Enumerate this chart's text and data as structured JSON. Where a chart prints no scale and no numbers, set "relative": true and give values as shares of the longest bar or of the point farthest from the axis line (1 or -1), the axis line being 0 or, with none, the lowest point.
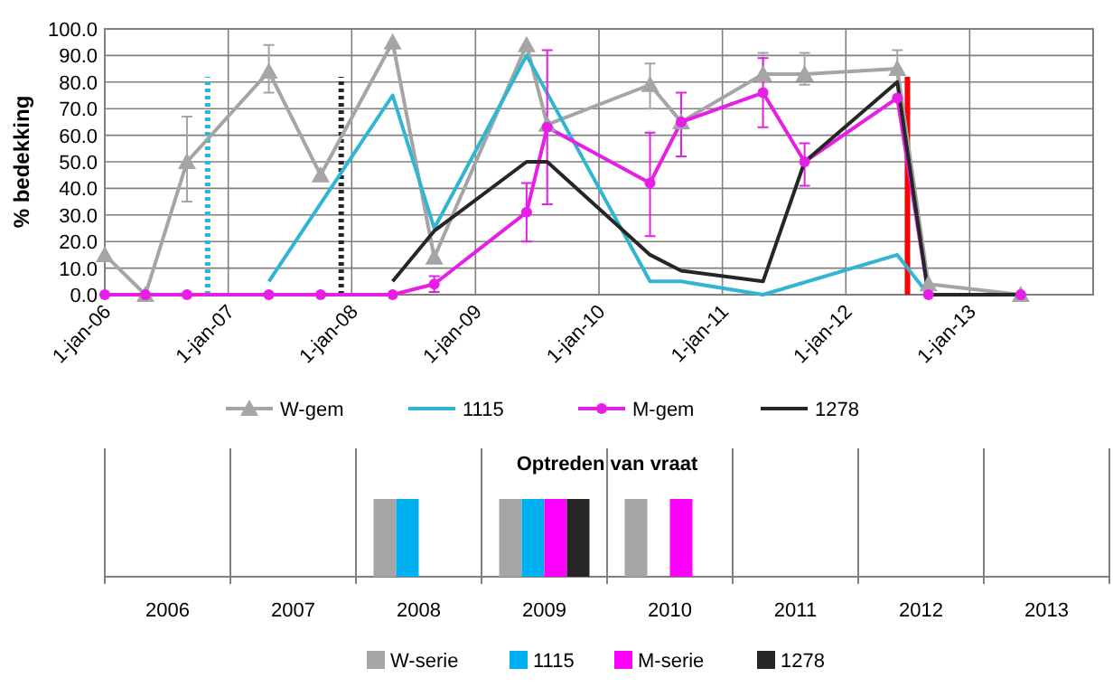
{
  "chart_data": [
    {
      "type": "line",
      "ylabel": "% bedekking",
      "xlim": [
        "2006-01-01",
        "2014-01-01"
      ],
      "xticks": [
        {
          "value": "2006-01-01",
          "label": "1-jan-06"
        },
        {
          "value": "2007-01-01",
          "label": "1-jan-07"
        },
        {
          "value": "2008-01-01",
          "label": "1-jan-08"
        },
        {
          "value": "2009-01-01",
          "label": "1-jan-09"
        },
        {
          "value": "2010-01-01",
          "label": "1-jan-10"
        },
        {
          "value": "2011-01-01",
          "label": "1-jan-11"
        },
        {
          "value": "2012-01-01",
          "label": "1-jan-12"
        },
        {
          "value": "2013-01-01",
          "label": "1-jan-13"
        }
      ],
      "ylim": [
        0,
        100
      ],
      "yticks": [
        {
          "value": 0,
          "label": "0.0"
        },
        {
          "value": 10,
          "label": "10.0"
        },
        {
          "value": 20,
          "label": "20.0"
        },
        {
          "value": 30,
          "label": "30.0"
        },
        {
          "value": 40,
          "label": "40.0"
        },
        {
          "value": 50,
          "label": "50.0"
        },
        {
          "value": 60,
          "label": "60.0"
        },
        {
          "value": 70,
          "label": "70.0"
        },
        {
          "value": 80,
          "label": "80.0"
        },
        {
          "value": 90,
          "label": "90.0"
        },
        {
          "value": 100,
          "label": "100.0"
        }
      ],
      "grid": true,
      "legend": "bottom",
      "series": [
        {
          "name": "W-gem",
          "color": "#a5a5a5",
          "marker": "triangle",
          "x": [
            "2006-01",
            "2006-05",
            "2006-09",
            "2007-05",
            "2007-10",
            "2008-05",
            "2008-09",
            "2009-06",
            "2009-08",
            "2010-06",
            "2010-09",
            "2011-05",
            "2011-09",
            "2012-06",
            "2012-09",
            "2013-06"
          ],
          "values": [
            15,
            0,
            50,
            84,
            45,
            95,
            14,
            94,
            64,
            79,
            65,
            83,
            83,
            85,
            4,
            0
          ],
          "errors": [
            null,
            null,
            [
              35,
              67
            ],
            [
              76,
              94
            ],
            null,
            null,
            null,
            null,
            null,
            [
              70,
              87
            ],
            null,
            [
              80,
              91
            ],
            [
              79,
              91
            ],
            [
              80,
              92
            ],
            null,
            null
          ]
        },
        {
          "name": "1115",
          "color": "#31b5d1",
          "marker": "none",
          "x": [
            "2007-05",
            "2008-05",
            "2008-09",
            "2009-06",
            "2010-06",
            "2010-09",
            "2011-05",
            "2012-06",
            "2012-09"
          ],
          "values": [
            5,
            75,
            25,
            90,
            5,
            5,
            0,
            15,
            0
          ]
        },
        {
          "name": "M-gem",
          "color": "#e61ee6",
          "marker": "circle",
          "x": [
            "2006-01",
            "2006-05",
            "2006-09",
            "2007-05",
            "2007-10",
            "2008-05",
            "2008-09",
            "2009-06",
            "2009-08",
            "2010-06",
            "2010-09",
            "2011-05",
            "2011-09",
            "2012-06",
            "2012-09",
            "2013-06"
          ],
          "values": [
            0,
            0,
            0,
            0,
            0,
            0,
            4,
            31,
            63,
            42,
            65,
            76,
            50,
            74,
            0,
            0
          ],
          "errors": [
            null,
            null,
            null,
            null,
            null,
            null,
            [
              1,
              7
            ],
            [
              20,
              42
            ],
            [
              34,
              92
            ],
            [
              22,
              61
            ],
            [
              52,
              76
            ],
            [
              63,
              89
            ],
            [
              41,
              57
            ],
            null,
            null,
            null
          ]
        },
        {
          "name": "1278",
          "color": "#262626",
          "marker": "none",
          "x": [
            "2008-05",
            "2008-09",
            "2009-06",
            "2009-08",
            "2010-06",
            "2010-09",
            "2011-05",
            "2011-09",
            "2012-06",
            "2012-09",
            "2013-06"
          ],
          "values": [
            5,
            24,
            50,
            50,
            15,
            9,
            5,
            50,
            80,
            0,
            0
          ]
        }
      ],
      "ref_lines": [
        {
          "axis": "x",
          "value": "2006-11",
          "color": "#29b6d8",
          "line_style": "dotted"
        },
        {
          "axis": "x",
          "value": "2007-12",
          "color": "#262626",
          "line_style": "dotted"
        },
        {
          "axis": "x",
          "value": "2012-07",
          "color": "#ff0000",
          "line_style": "solid"
        }
      ]
    },
    {
      "type": "bar",
      "title": "Optreden van vraat",
      "relative": true,
      "grid": "x",
      "legend": "bottom",
      "categories": [
        "2006",
        "2007",
        "2008",
        "2009",
        "2010",
        "2011",
        "2012",
        "2013"
      ],
      "series": [
        {
          "name": "W-serie",
          "color": "#a6a6a6",
          "values": [
            null,
            null,
            1,
            1,
            1,
            null,
            null,
            null
          ]
        },
        {
          "name": "1115",
          "color": "#00b0f0",
          "values": [
            null,
            null,
            1,
            1,
            null,
            null,
            null,
            null
          ]
        },
        {
          "name": "M-serie",
          "color": "#ff00ff",
          "values": [
            null,
            null,
            null,
            1,
            1,
            null,
            null,
            null
          ]
        },
        {
          "name": "1278",
          "color": "#262626",
          "values": [
            null,
            null,
            null,
            1,
            null,
            null,
            null,
            null
          ]
        }
      ]
    }
  ]
}
